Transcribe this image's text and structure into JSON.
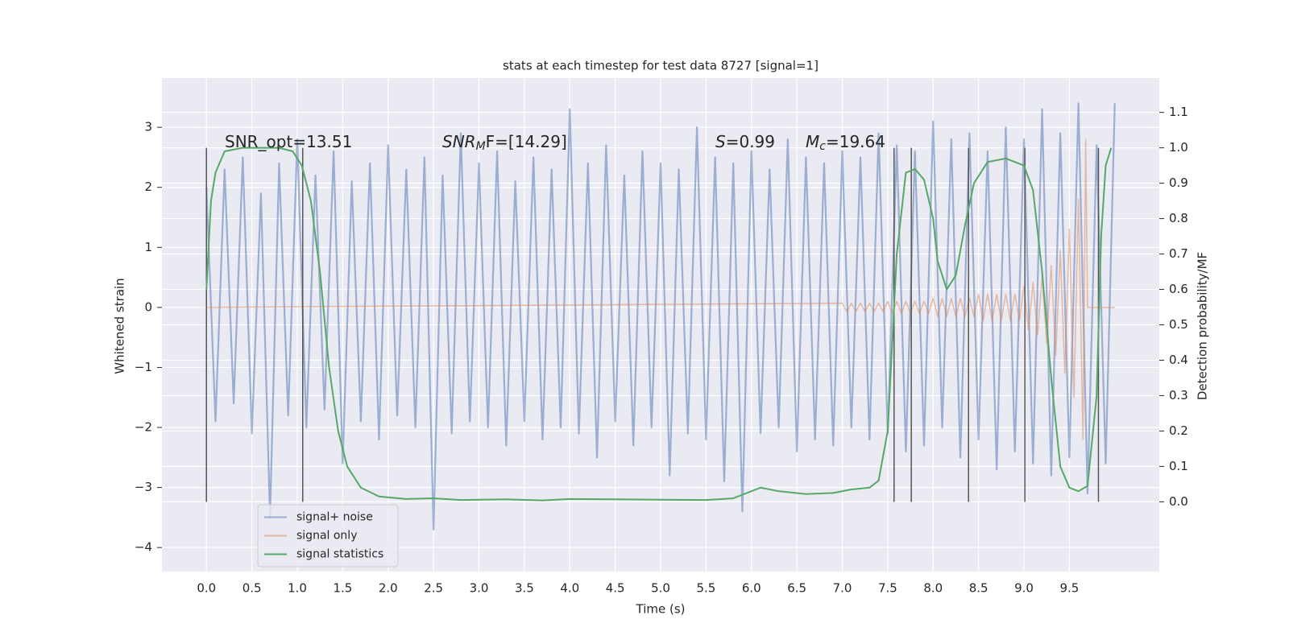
{
  "chart_data": {
    "type": "line",
    "title": "stats at each timestep for test data 8727 [signal=1]",
    "xlabel": "Time (s)",
    "ylabel": "Whitened strain",
    "y2label": "Detection probability/MF",
    "annotations": [
      {
        "main": "SNR_opt=13.51"
      },
      {
        "main": "SNR",
        "sub": "M",
        "rest": "F=[14.29]"
      },
      {
        "main": "S",
        "rest": "=0.99"
      },
      {
        "main": "M",
        "sub": "c",
        "rest": "=19.64"
      }
    ],
    "xlim": [
      -0.49,
      10.49
    ],
    "xticks": [
      {
        "value": 0,
        "label": "0.0"
      },
      0.5,
      {
        "value": 1,
        "label": "1.0"
      },
      1.5,
      {
        "value": 2,
        "label": "2.0"
      },
      2.5,
      {
        "value": 3,
        "label": "3.0"
      },
      3.5,
      {
        "value": 4,
        "label": "4.0"
      },
      4.5,
      {
        "value": 5,
        "label": "5.0"
      },
      5.5,
      {
        "value": 6,
        "label": "6.0"
      },
      6.5,
      {
        "value": 7,
        "label": "7.0"
      },
      7.5,
      {
        "value": 8,
        "label": "8.0"
      },
      8.5,
      {
        "value": 9,
        "label": "9.0"
      },
      9.5
    ],
    "ylim": [
      -4.4,
      3.82
    ],
    "yticks": [
      {
        "value": -4,
        "label": "−4"
      },
      {
        "value": -3,
        "label": "−3"
      },
      {
        "value": -2,
        "label": "−2"
      },
      {
        "value": -1,
        "label": "−1"
      },
      0,
      1,
      2,
      3
    ],
    "y2lim": [
      -0.197,
      1.197
    ],
    "y2ticks": [
      {
        "value": 0,
        "label": "0.0"
      },
      0.1,
      0.2,
      0.3,
      0.4,
      0.5,
      0.6,
      0.7,
      0.8,
      0.9,
      {
        "value": 1,
        "label": "1.0"
      },
      1.1
    ],
    "grid": true,
    "legend": "lower left",
    "series": [
      {
        "name": "signal+ noise",
        "color": "#4c72b0",
        "x": [
          0.0,
          0.1,
          0.2,
          0.3,
          0.4,
          0.5,
          0.6,
          0.7,
          0.8,
          0.9,
          1.0,
          1.1,
          1.2,
          1.3,
          1.4,
          1.5,
          1.6,
          1.7,
          1.8,
          1.9,
          2.0,
          2.1,
          2.2,
          2.3,
          2.4,
          2.5,
          2.6,
          2.7,
          2.8,
          2.9,
          3.0,
          3.1,
          3.2,
          3.3,
          3.4,
          3.5,
          3.6,
          3.7,
          3.8,
          3.9,
          4.0,
          4.1,
          4.2,
          4.3,
          4.4,
          4.5,
          4.6,
          4.7,
          4.8,
          4.9,
          5.0,
          5.1,
          5.2,
          5.3,
          5.4,
          5.5,
          5.6,
          5.7,
          5.8,
          5.9,
          6.0,
          6.1,
          6.2,
          6.3,
          6.4,
          6.5,
          6.6,
          6.7,
          6.8,
          6.9,
          7.0,
          7.1,
          7.2,
          7.3,
          7.4,
          7.5,
          7.6,
          7.7,
          7.8,
          7.9,
          8.0,
          8.1,
          8.2,
          8.3,
          8.4,
          8.5,
          8.6,
          8.7,
          8.8,
          8.9,
          9.0,
          9.1,
          9.2,
          9.3,
          9.4,
          9.5,
          9.6,
          9.7,
          9.8,
          9.9,
          10.0
        ],
        "values": [
          2.0,
          -1.9,
          2.3,
          -1.6,
          2.5,
          -2.1,
          1.9,
          -3.5,
          2.4,
          -1.8,
          2.8,
          -2.0,
          2.2,
          -1.7,
          2.6,
          -2.6,
          2.1,
          -1.9,
          2.4,
          -2.2,
          2.7,
          -1.8,
          2.3,
          -2.0,
          2.5,
          -3.7,
          2.2,
          -2.1,
          2.9,
          -1.9,
          2.4,
          -2.0,
          2.6,
          -2.3,
          2.1,
          -1.9,
          2.5,
          -2.2,
          2.3,
          -2.0,
          3.3,
          -2.1,
          2.4,
          -2.5,
          2.7,
          -1.9,
          2.2,
          -2.3,
          2.6,
          -2.0,
          2.4,
          -2.8,
          2.3,
          -2.1,
          3.0,
          -2.2,
          2.5,
          -2.9,
          2.4,
          -3.4,
          2.6,
          -2.1,
          2.3,
          -2.0,
          2.8,
          -2.4,
          2.5,
          -2.2,
          2.4,
          -2.3,
          2.6,
          -2.0,
          2.5,
          -2.2,
          2.9,
          -2.1,
          2.7,
          -2.4,
          2.6,
          -2.3,
          3.1,
          -2.0,
          2.8,
          -2.5,
          2.9,
          -2.2,
          2.6,
          -2.7,
          3.0,
          -2.4,
          2.8,
          -2.6,
          3.3,
          -2.8,
          2.9,
          -2.5,
          3.4,
          -3.1,
          2.7,
          -2.6,
          3.4
        ]
      },
      {
        "name": "signal only",
        "color": "#dd8452",
        "x": [
          0.0,
          7.0,
          7.05,
          7.1,
          7.15,
          7.2,
          7.25,
          7.3,
          7.35,
          7.4,
          7.45,
          7.5,
          7.55,
          7.6,
          7.65,
          7.7,
          7.75,
          7.8,
          7.85,
          7.9,
          7.95,
          8.0,
          8.05,
          8.1,
          8.15,
          8.2,
          8.25,
          8.3,
          8.35,
          8.4,
          8.45,
          8.5,
          8.55,
          8.6,
          8.65,
          8.7,
          8.75,
          8.8,
          8.85,
          8.9,
          8.95,
          9.0,
          9.05,
          9.1,
          9.15,
          9.2,
          9.25,
          9.3,
          9.35,
          9.4,
          9.45,
          9.5,
          9.55,
          9.6,
          9.65,
          9.68,
          9.7,
          10.0
        ],
        "values": [
          0,
          0.07,
          -0.07,
          0.07,
          -0.07,
          0.07,
          -0.07,
          0.07,
          -0.07,
          0.07,
          -0.07,
          0.1,
          -0.1,
          0.1,
          -0.1,
          0.1,
          -0.1,
          0.1,
          -0.1,
          0.1,
          -0.1,
          0.15,
          -0.15,
          0.15,
          -0.15,
          0.15,
          -0.15,
          0.15,
          -0.15,
          0.15,
          -0.15,
          0.22,
          -0.22,
          0.22,
          -0.22,
          0.22,
          -0.22,
          0.22,
          -0.22,
          0.22,
          -0.22,
          0.35,
          -0.38,
          0.42,
          -0.46,
          0.52,
          -0.6,
          0.7,
          -0.8,
          0.95,
          -1.1,
          1.3,
          -1.5,
          1.8,
          -2.2,
          2.8,
          0,
          0
        ]
      },
      {
        "name": "signal statistics",
        "color": "#55a868",
        "axis": "y2",
        "x": [
          0.0,
          0.05,
          0.1,
          0.2,
          0.4,
          0.6,
          0.8,
          0.95,
          1.05,
          1.15,
          1.25,
          1.35,
          1.45,
          1.55,
          1.7,
          1.9,
          2.2,
          2.5,
          2.8,
          3.3,
          3.7,
          4.0,
          4.5,
          5.0,
          5.5,
          5.8,
          5.95,
          6.1,
          6.3,
          6.6,
          6.9,
          7.1,
          7.3,
          7.4,
          7.5,
          7.6,
          7.7,
          7.8,
          7.9,
          8.0,
          8.05,
          8.15,
          8.25,
          8.35,
          8.45,
          8.6,
          8.8,
          9.0,
          9.1,
          9.2,
          9.3,
          9.4,
          9.5,
          9.6,
          9.7,
          9.8,
          9.85,
          9.9,
          9.96
        ],
        "values": [
          0.6,
          0.85,
          0.93,
          0.99,
          1.0,
          1.0,
          1.0,
          0.99,
          0.95,
          0.85,
          0.65,
          0.38,
          0.2,
          0.1,
          0.04,
          0.015,
          0.008,
          0.01,
          0.005,
          0.007,
          0.004,
          0.008,
          0.007,
          0.006,
          0.005,
          0.01,
          0.025,
          0.04,
          0.03,
          0.022,
          0.025,
          0.035,
          0.04,
          0.06,
          0.2,
          0.7,
          0.93,
          0.94,
          0.91,
          0.8,
          0.68,
          0.6,
          0.64,
          0.78,
          0.9,
          0.96,
          0.97,
          0.95,
          0.88,
          0.65,
          0.35,
          0.1,
          0.04,
          0.03,
          0.045,
          0.3,
          0.75,
          0.95,
          1.0
        ]
      }
    ],
    "vlines": {
      "x": [
        0.0,
        1.06,
        7.57,
        7.76,
        8.39,
        9.01,
        9.82
      ],
      "ymin": 0,
      "ymax": 1,
      "axis": "y2",
      "color": "#555555"
    }
  }
}
